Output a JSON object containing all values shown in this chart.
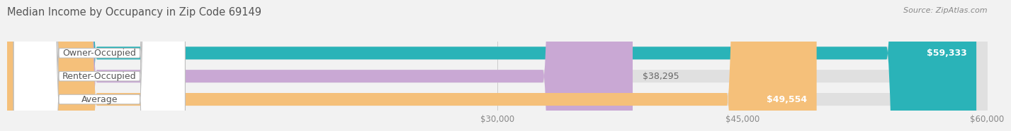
{
  "title": "Median Income by Occupancy in Zip Code 69149",
  "source": "Source: ZipAtlas.com",
  "categories": [
    "Owner-Occupied",
    "Renter-Occupied",
    "Average"
  ],
  "values": [
    59333,
    38295,
    49554
  ],
  "bar_colors": [
    "#2ab3b8",
    "#c9a8d4",
    "#f5c07a"
  ],
  "value_labels": [
    "$59,333",
    "$38,295",
    "$49,554"
  ],
  "value_label_inside": [
    true,
    false,
    true
  ],
  "xlim": [
    0,
    60000
  ],
  "xticks": [
    30000,
    45000,
    60000
  ],
  "xticklabels": [
    "$30,000",
    "$45,000",
    "$60,000"
  ],
  "background_color": "#f2f2f2",
  "bar_background_color": "#e0e0e0",
  "title_fontsize": 10.5,
  "label_fontsize": 9,
  "tick_fontsize": 8.5,
  "source_fontsize": 8
}
